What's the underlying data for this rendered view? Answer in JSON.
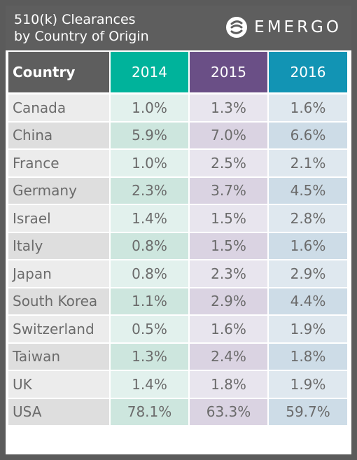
{
  "title": "510(k) Clearances\nby Country of Origin",
  "logo": {
    "text": "EMERGO",
    "icon": "emergo-logo-icon"
  },
  "colors": {
    "header_country": "#5e5e5e",
    "header_2014": "#00b39b",
    "header_2015": "#6a4f86",
    "header_2016": "#1294b4",
    "row_country_odd": "#ececec",
    "row_country_even": "#dedede",
    "row_2014_odd": "#e2f1ed",
    "row_2014_even": "#cde6de",
    "row_2015_odd": "#e8e5ee",
    "row_2015_even": "#dad3e2",
    "row_2016_odd": "#dfe8ef",
    "row_2016_even": "#cddce7"
  },
  "chart_data": {
    "type": "table",
    "title": "510(k) Clearances by Country of Origin",
    "columns": [
      "Country",
      "2014",
      "2015",
      "2016"
    ],
    "rows": [
      [
        "Canada",
        "1.0%",
        "1.3%",
        "1.6%"
      ],
      [
        "China",
        "5.9%",
        "7.0%",
        "6.6%"
      ],
      [
        "France",
        "1.0%",
        "2.5%",
        "2.1%"
      ],
      [
        "Germany",
        "2.3%",
        "3.7%",
        "4.5%"
      ],
      [
        "Israel",
        "1.4%",
        "1.5%",
        "2.8%"
      ],
      [
        "Italy",
        "0.8%",
        "1.5%",
        "1.6%"
      ],
      [
        "Japan",
        "0.8%",
        "2.3%",
        "2.9%"
      ],
      [
        "South Korea",
        "1.1%",
        "2.9%",
        "4.4%"
      ],
      [
        "Switzerland",
        "0.5%",
        "1.6%",
        "1.9%"
      ],
      [
        "Taiwan",
        "1.3%",
        "2.4%",
        "1.8%"
      ],
      [
        "UK",
        "1.4%",
        "1.8%",
        "1.9%"
      ],
      [
        "USA",
        "78.1%",
        "63.3%",
        "59.7%"
      ]
    ]
  }
}
